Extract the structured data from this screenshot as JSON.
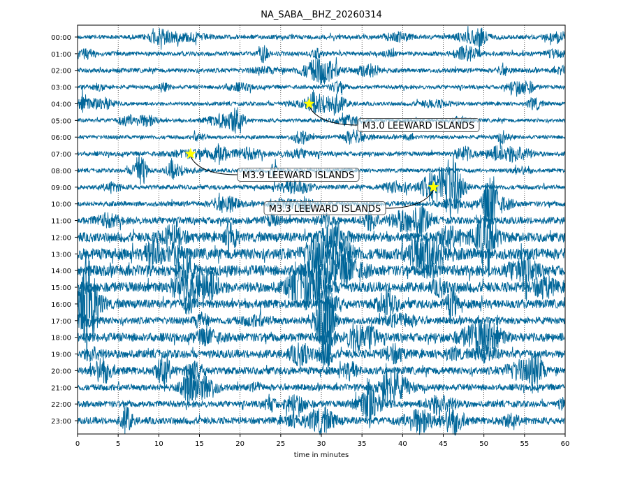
{
  "chart_data": {
    "type": "line",
    "subtype": "helicorder",
    "title": "NA_SABA__BHZ_20260314",
    "xlabel": "time in minutes",
    "ylabel": "",
    "xlim": [
      0,
      60
    ],
    "xticks": [
      0,
      5,
      10,
      15,
      20,
      25,
      30,
      35,
      40,
      45,
      50,
      55,
      60
    ],
    "grid": "vertical dotted",
    "trace_color": "#006699",
    "rows": [
      "00:00",
      "01:00",
      "02:00",
      "03:00",
      "04:00",
      "05:00",
      "06:00",
      "07:00",
      "08:00",
      "09:00",
      "10:00",
      "11:00",
      "12:00",
      "13:00",
      "14:00",
      "15:00",
      "16:00",
      "17:00",
      "18:00",
      "19:00",
      "20:00",
      "21:00",
      "22:00",
      "23:00"
    ],
    "relative_amplitude": [
      0.35,
      0.35,
      0.35,
      0.3,
      0.3,
      0.3,
      0.3,
      0.35,
      0.3,
      0.35,
      0.4,
      0.55,
      0.75,
      0.9,
      0.85,
      0.8,
      0.7,
      0.55,
      0.7,
      0.65,
      0.6,
      0.5,
      0.5,
      0.55
    ],
    "events": [
      {
        "label": "M3.0 LEEWARD ISLANDS",
        "row": "04:00",
        "minute": 28.5
      },
      {
        "label": "M3.9 LEEWARD ISLANDS",
        "row": "07:00",
        "minute": 13.9
      },
      {
        "label": "M3.3 LEEWARD ISLANDS",
        "row": "09:00",
        "minute": 43.8
      }
    ],
    "marker_color": "#ffff00"
  }
}
